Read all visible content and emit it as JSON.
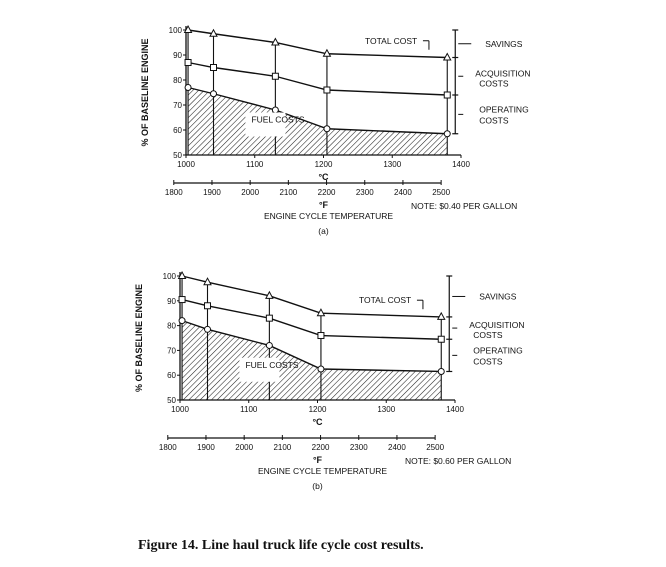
{
  "figure_caption": "Figure 14.  Line haul truck life cycle cost results.",
  "chart_data": [
    {
      "type": "area",
      "panel_label": "(a)",
      "ylabel": "% OF BASELINE ENGINE",
      "xlabel_c": "°C",
      "xlabel_f": "°F",
      "xtitle": "ENGINE CYCLE TEMPERATURE",
      "note": "NOTE:  $0.40 PER GALLON",
      "x_celsius_ticks": [
        "1000",
        "1100",
        "1200",
        "1300",
        "1400"
      ],
      "x_fahrenheit_ticks": [
        "1800",
        "1900",
        "2000",
        "2100",
        "2200",
        "2300",
        "2400",
        "2500"
      ],
      "y_ticks": [
        "50",
        "60",
        "70",
        "80",
        "90",
        "100"
      ],
      "xlim_c": [
        1000,
        1400
      ],
      "ylim": [
        50,
        100
      ],
      "x": [
        1003,
        1040,
        1130,
        1205,
        1380
      ],
      "series": [
        {
          "name": "TOTAL COST",
          "marker": "triangle",
          "values": [
            100,
            98.5,
            95,
            90.5,
            89
          ]
        },
        {
          "marker": "square",
          "values": [
            87,
            85,
            81.5,
            76,
            74
          ]
        },
        {
          "name": "FUEL COSTS",
          "marker": "circle",
          "values": [
            77,
            74.5,
            68,
            60.5,
            58.5
          ]
        }
      ],
      "annotations": [
        "TOTAL COST",
        "FUEL COSTS",
        "SAVINGS",
        "ACQUISITION",
        "COSTS",
        "OPERATING",
        "COSTS"
      ]
    },
    {
      "type": "area",
      "panel_label": "(b)",
      "ylabel": "% OF BASELINE ENGINE",
      "xlabel_c": "°C",
      "xlabel_f": "°F",
      "xtitle": "ENGINE CYCLE TEMPERATURE",
      "note": "NOTE:  $0.60 PER GALLON",
      "x_celsius_ticks": [
        "1000",
        "1100",
        "1200",
        "1300",
        "1400"
      ],
      "x_fahrenheit_ticks": [
        "1800",
        "1900",
        "2000",
        "2100",
        "2200",
        "2300",
        "2400",
        "2500"
      ],
      "y_ticks": [
        "50",
        "60",
        "70",
        "80",
        "90",
        "100"
      ],
      "xlim_c": [
        1000,
        1400
      ],
      "ylim": [
        50,
        100
      ],
      "x": [
        1003,
        1040,
        1130,
        1205,
        1380
      ],
      "series": [
        {
          "name": "TOTAL COST",
          "marker": "triangle",
          "values": [
            100,
            97.5,
            92,
            85,
            83.5
          ]
        },
        {
          "marker": "square",
          "values": [
            90.5,
            88,
            83,
            76,
            74.5
          ]
        },
        {
          "name": "FUEL COSTS",
          "marker": "circle",
          "values": [
            82,
            78.5,
            72,
            62.5,
            61.5
          ]
        }
      ],
      "annotations": [
        "TOTAL COST",
        "FUEL COSTS",
        "SAVINGS",
        "ACQUISITION",
        "COSTS",
        "OPERATING",
        "COSTS"
      ]
    }
  ]
}
